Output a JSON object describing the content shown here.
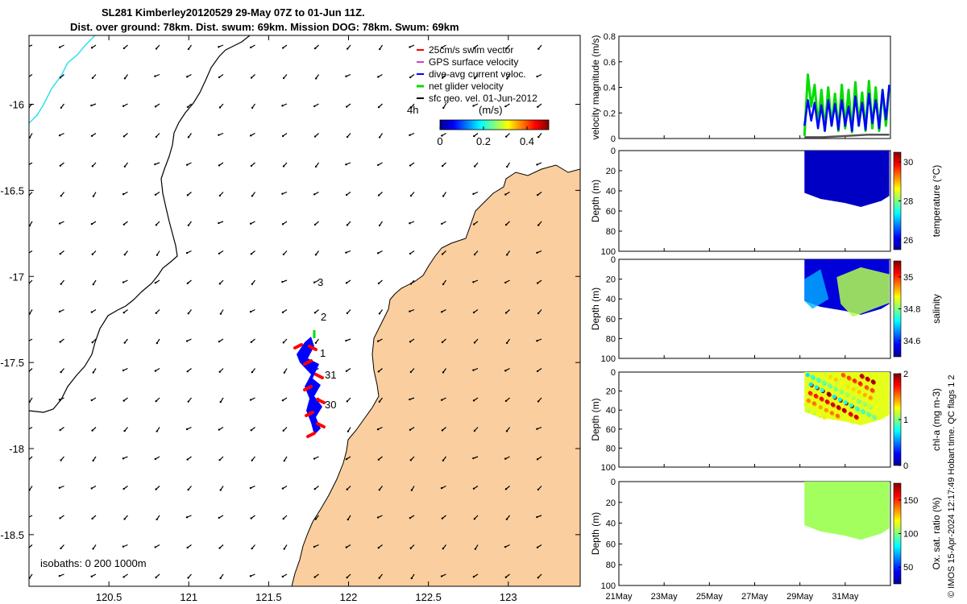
{
  "title": {
    "line1": "SL281 Kimberley20120529 29-May 07Z to 01-Jun 11Z.",
    "line2": "Dist. over ground: 78km. Dist. swum: 69km. Mission DOG: 78km. Swum: 69km"
  },
  "credit": "© IMOS 15-Apr-2024 12:17:49 Hobart time. QC flags 1  2",
  "colors": {
    "land": "#FACE9E",
    "ocean": "#FFFFFF",
    "deep_isobath": "#30E0F0",
    "swim_vector": "#FF0000",
    "gps_velocity": "#D040D0",
    "dive_avg": "#0000FF",
    "net_glider": "#00DD00",
    "surface_geo": "#000000"
  },
  "map": {
    "lon_ticks": [
      "120.5",
      "121",
      "121.5",
      "122",
      "122.5",
      "123"
    ],
    "lat_ticks": [
      "-16",
      "-16.5",
      "-17",
      "-17.5",
      "-18",
      "-18.5"
    ],
    "lon_range": [
      120.0,
      123.45
    ],
    "lat_range": [
      -18.8,
      -15.6
    ],
    "isobaths_label": "isobaths: 0   200  1000m",
    "legend": [
      "25cm/s swim vector",
      "GPS surface velocity",
      "dive-avg current veloc.",
      "net glider velocity",
      "sfc geo. vel. 01-Jun-2012"
    ],
    "colorbar": {
      "label": "(m/s)",
      "time_label": "4h",
      "ticks": [
        "0",
        "0.2",
        "0.4"
      ],
      "range": [
        0,
        0.5
      ]
    },
    "track_day_labels": [
      "3",
      "2",
      "1",
      "31",
      "30"
    ]
  },
  "chart_data": [
    {
      "type": "line",
      "title": "",
      "ylabel": "velocity magnitude (m/s)",
      "ylim": [
        0,
        0.8
      ],
      "y_ticks": [
        "0",
        "0.2",
        "0.4",
        "0.6",
        "0.8"
      ],
      "x_range_days": [
        0,
        12
      ],
      "series": [
        {
          "name": "net glider velocity",
          "color": "#00DD00",
          "x": [
            8.2,
            8.35,
            8.5,
            8.65,
            8.8,
            8.95,
            9.1,
            9.25,
            9.4,
            9.55,
            9.7,
            9.85,
            10.0,
            10.15,
            10.3,
            10.45,
            10.6,
            10.75,
            10.9,
            11.05,
            11.2,
            11.35,
            11.5,
            11.65,
            11.8,
            11.95
          ],
          "y": [
            0.02,
            0.5,
            0.25,
            0.42,
            0.1,
            0.38,
            0.06,
            0.4,
            0.1,
            0.35,
            0.06,
            0.42,
            0.08,
            0.38,
            0.05,
            0.44,
            0.1,
            0.36,
            0.06,
            0.45,
            0.08,
            0.4,
            0.06,
            0.38,
            0.1,
            0.42
          ]
        },
        {
          "name": "dive-avg current veloc.",
          "color": "#0000FF",
          "x": [
            8.2,
            8.35,
            8.5,
            8.65,
            8.8,
            8.95,
            9.1,
            9.25,
            9.4,
            9.55,
            9.7,
            9.85,
            10.0,
            10.15,
            10.3,
            10.45,
            10.6,
            10.75,
            10.9,
            11.05,
            11.2,
            11.35,
            11.5,
            11.65,
            11.8,
            11.95
          ],
          "y": [
            0.1,
            0.3,
            0.14,
            0.28,
            0.08,
            0.26,
            0.06,
            0.3,
            0.1,
            0.27,
            0.07,
            0.3,
            0.1,
            0.25,
            0.06,
            0.33,
            0.1,
            0.28,
            0.07,
            0.35,
            0.12,
            0.3,
            0.08,
            0.38,
            0.15,
            0.42
          ]
        },
        {
          "name": "sfc geo. vel.",
          "color": "#555555",
          "x": [
            8.2,
            9.0,
            10.0,
            11.0,
            11.95
          ],
          "y": [
            0.01,
            0.01,
            0.02,
            0.03,
            0.03
          ]
        }
      ]
    },
    {
      "type": "heatmap",
      "ylabel": "Depth (m)",
      "colorbar_label": "temperature (°C)",
      "y_ticks": [
        "0",
        "20",
        "40",
        "60",
        "80",
        "100"
      ],
      "cbar_ticks": [
        "26",
        "28",
        "30"
      ],
      "cbar_range": [
        25.5,
        30.5
      ],
      "x_days": [
        8.2,
        11.95
      ],
      "dominant_value": 25.8
    },
    {
      "type": "heatmap",
      "ylabel": "Depth (m)",
      "colorbar_label": "salinity",
      "y_ticks": [
        "0",
        "20",
        "40",
        "60",
        "80",
        "100"
      ],
      "cbar_ticks": [
        "34.6",
        "34.8",
        "35"
      ],
      "cbar_range": [
        34.5,
        35.1
      ],
      "x_days": [
        8.2,
        11.95
      ],
      "dominant_value": 34.55
    },
    {
      "type": "heatmap",
      "ylabel": "Depth (m)",
      "colorbar_label": "chl-a (mg m-3)",
      "y_ticks": [
        "0",
        "20",
        "40",
        "60",
        "80",
        "100"
      ],
      "cbar_ticks": [
        "0",
        "1",
        "2"
      ],
      "cbar_range": [
        0,
        2
      ],
      "x_days": [
        8.2,
        11.95
      ],
      "dominant_value": 1.2
    },
    {
      "type": "heatmap",
      "ylabel": "Depth (m)",
      "colorbar_label": "Ox. sat. ratio (%)",
      "y_ticks": [
        "0",
        "20",
        "40",
        "60",
        "80",
        "100"
      ],
      "cbar_ticks": [
        "50",
        "100",
        "150"
      ],
      "cbar_range": [
        25,
        175
      ],
      "x_days": [
        8.2,
        11.95
      ],
      "dominant_value": 105
    }
  ],
  "time_axis": {
    "ticks": [
      "21May",
      "23May",
      "25May",
      "27May",
      "29May",
      "31May"
    ],
    "range_days": [
      0,
      12
    ]
  }
}
